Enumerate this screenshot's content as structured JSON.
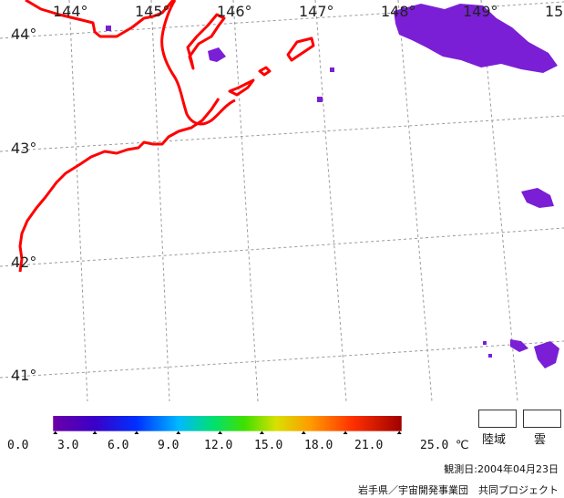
{
  "map": {
    "lon_labels": [
      "144°",
      "145°",
      "146°",
      "147°",
      "148°",
      "149°",
      "15"
    ],
    "lat_labels": [
      "44°",
      "43°",
      "42°",
      "41°"
    ]
  },
  "colorbar": {
    "ticks": [
      "0.0",
      "3.0",
      "6.0",
      "9.0",
      "12.0",
      "15.0",
      "18.0",
      "21.0",
      "25.0"
    ],
    "unit": "℃"
  },
  "legend": {
    "land_label": "陸域",
    "cloud_label": "雲"
  },
  "footer": {
    "observation_date": "観測日:2004年04月23日",
    "credit": "岩手県／宇宙開発事業団　共同プロジェクト"
  },
  "colors": {
    "coastline": "#ff0000",
    "graticule": "#9a9a9a",
    "sst_patch": "#7a1fd6"
  }
}
